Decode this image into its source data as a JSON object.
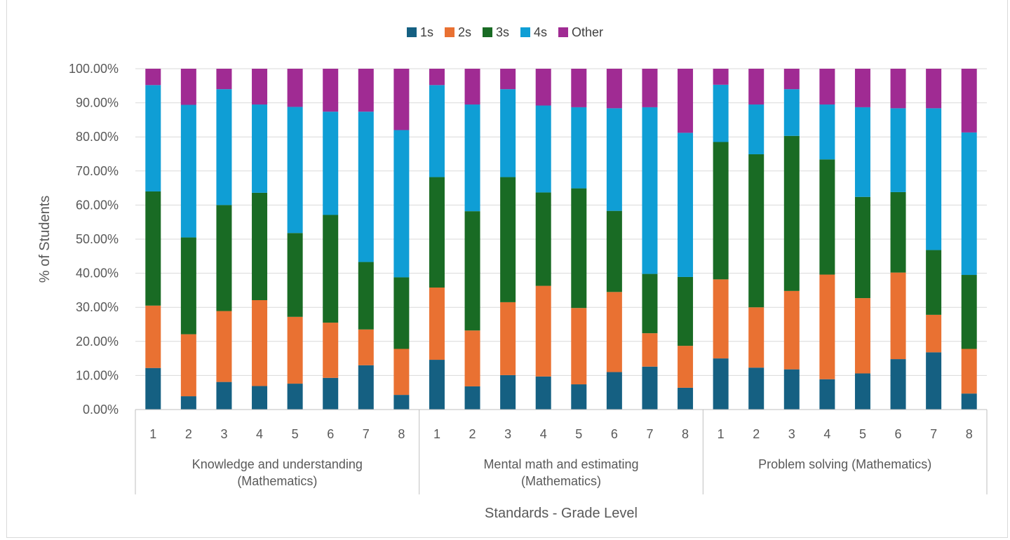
{
  "chart_data": {
    "type": "bar",
    "stacked": true,
    "title": "",
    "xlabel": "Standards - Grade Level",
    "ylabel": "% of Students",
    "ylim": [
      0,
      100
    ],
    "yticks": [
      "0.00%",
      "10.00%",
      "20.00%",
      "30.00%",
      "40.00%",
      "50.00%",
      "60.00%",
      "70.00%",
      "80.00%",
      "90.00%",
      "100.00%"
    ],
    "legend_position": "top",
    "grid": true,
    "groups": [
      {
        "label_lines": [
          "Knowledge and understanding",
          "(Mathematics)"
        ],
        "categories": [
          "1",
          "2",
          "3",
          "4",
          "5",
          "6",
          "7",
          "8"
        ]
      },
      {
        "label_lines": [
          "Mental math and estimating",
          "(Mathematics)"
        ],
        "categories": [
          "1",
          "2",
          "3",
          "4",
          "5",
          "6",
          "7",
          "8"
        ]
      },
      {
        "label_lines": [
          "Problem solving (Mathematics)"
        ],
        "categories": [
          "1",
          "2",
          "3",
          "4",
          "5",
          "6",
          "7",
          "8"
        ]
      }
    ],
    "series": [
      {
        "name": "1s",
        "color": "#156082",
        "values": [
          12.2,
          3.9,
          8.1,
          6.9,
          7.6,
          9.3,
          13.0,
          4.3,
          14.6,
          6.8,
          10.1,
          9.7,
          7.4,
          11.0,
          12.6,
          6.4,
          15.0,
          12.3,
          11.8,
          8.9,
          10.6,
          14.8,
          16.8,
          4.7
        ]
      },
      {
        "name": "2s",
        "color": "#E97132",
        "values": [
          18.3,
          18.2,
          20.8,
          25.2,
          19.6,
          16.2,
          10.5,
          13.5,
          21.2,
          16.4,
          21.4,
          26.6,
          22.4,
          23.5,
          9.8,
          12.3,
          23.2,
          17.7,
          23.0,
          30.7,
          22.1,
          25.4,
          11.0,
          13.1
        ]
      },
      {
        "name": "3s",
        "color": "#196B24",
        "values": [
          33.5,
          28.4,
          31.1,
          31.5,
          24.6,
          31.6,
          19.8,
          21.0,
          32.4,
          35.0,
          36.7,
          27.4,
          35.1,
          23.8,
          17.4,
          20.2,
          40.3,
          44.9,
          45.5,
          33.8,
          29.7,
          23.6,
          19.0,
          21.7
        ]
      },
      {
        "name": "4s",
        "color": "#0F9ED5",
        "values": [
          31.2,
          38.9,
          34.0,
          25.9,
          37.0,
          30.3,
          44.1,
          43.2,
          27.0,
          31.3,
          25.8,
          25.5,
          23.8,
          30.1,
          48.9,
          42.3,
          16.8,
          14.6,
          13.7,
          16.1,
          26.3,
          24.6,
          41.6,
          41.8
        ]
      },
      {
        "name": "Other",
        "color": "#A02B93",
        "values": [
          4.8,
          10.6,
          6.0,
          10.5,
          11.2,
          12.6,
          12.6,
          18.0,
          4.8,
          10.5,
          6.0,
          10.8,
          11.3,
          11.6,
          11.3,
          18.8,
          4.7,
          10.5,
          6.0,
          10.5,
          11.3,
          11.6,
          11.6,
          18.7
        ]
      }
    ]
  }
}
